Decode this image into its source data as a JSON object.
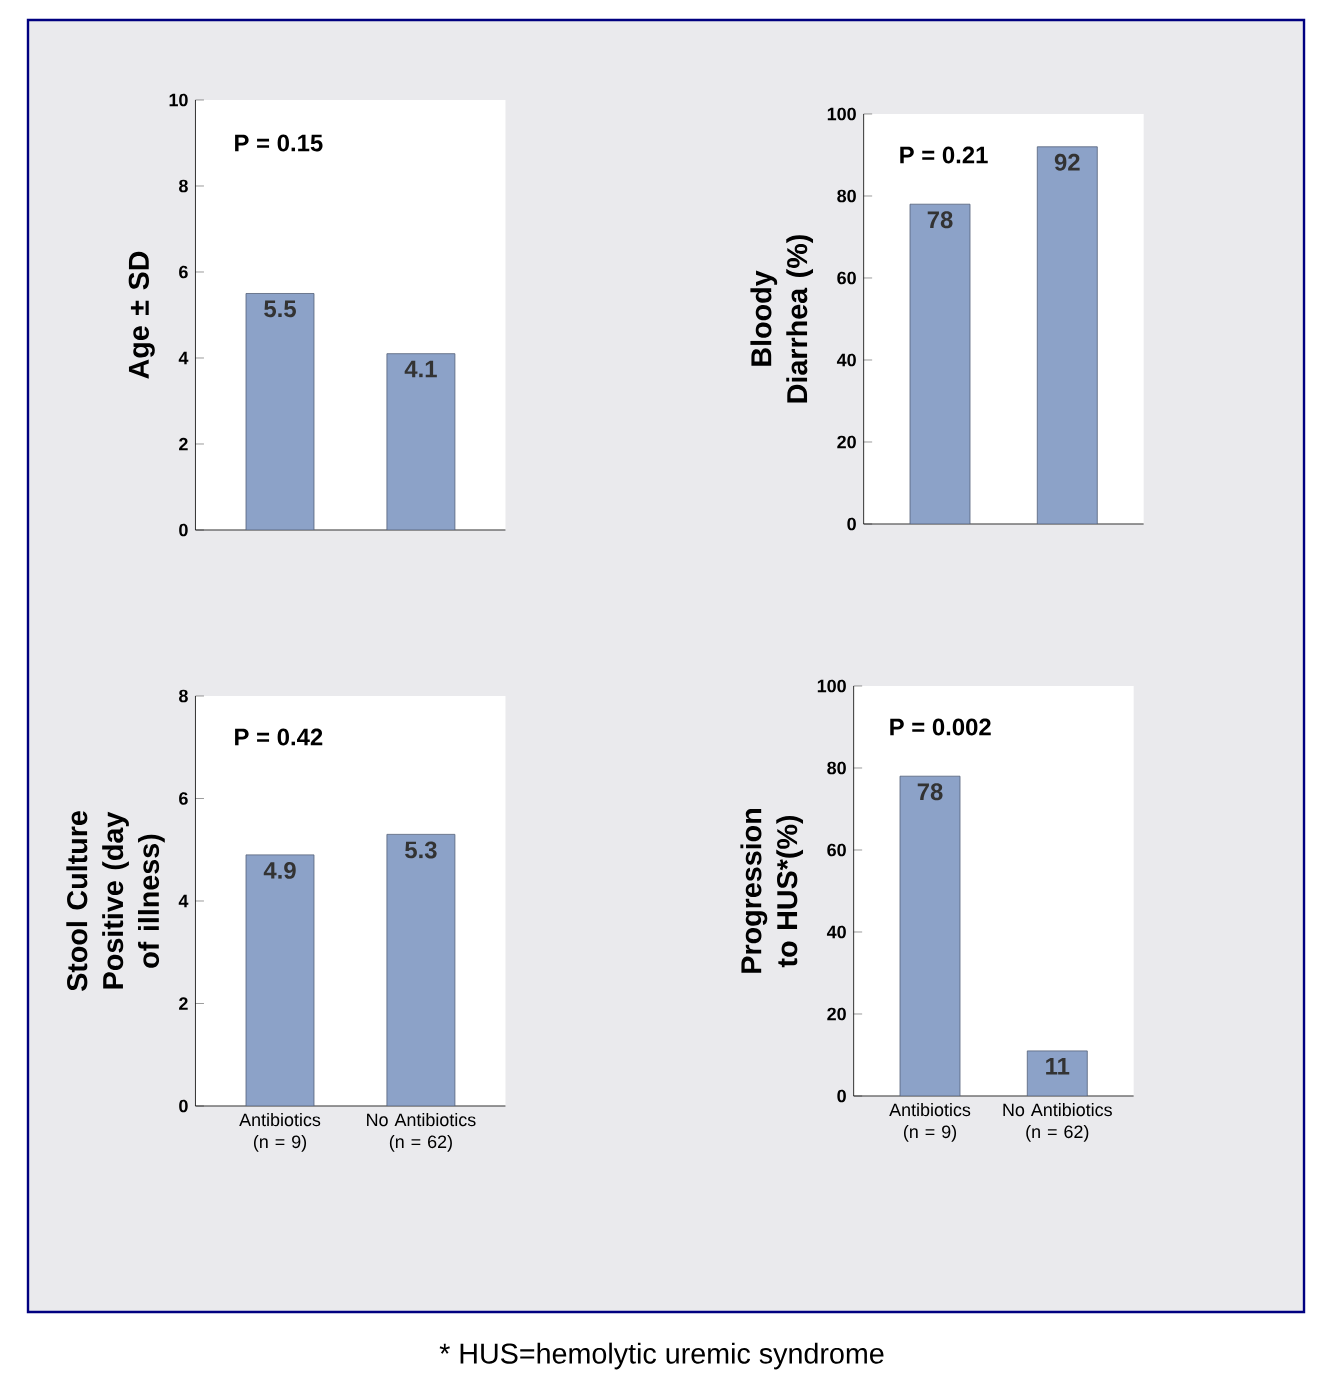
{
  "chart_data": [
    {
      "type": "bar",
      "ylabel": "Age ± SD",
      "categories": [
        null,
        null
      ],
      "values": [
        5.5,
        4.1
      ],
      "color": "#8ca2c8",
      "ylim": [
        0,
        10
      ],
      "yticks": [
        0,
        2,
        4,
        6,
        8,
        10
      ],
      "data_labels": true,
      "annotations": [
        "P = 0.15"
      ]
    },
    {
      "type": "bar",
      "ylabel": "Bloody Diarrhea (%)",
      "categories": [
        null,
        null
      ],
      "values": [
        78,
        92
      ],
      "color": "#8ca2c8",
      "ylim": [
        0,
        100
      ],
      "yticks": [
        0,
        20,
        40,
        60,
        80,
        100
      ],
      "data_labels": true,
      "annotations": [
        "P = 0.21"
      ]
    },
    {
      "type": "bar",
      "ylabel": "Stool Culture Positive (day of illness)",
      "categories": [
        "Antibiotics (n = 9)",
        "No Antibiotics (n = 62)"
      ],
      "values": [
        4.9,
        5.3
      ],
      "color": "#8ca2c8",
      "ylim": [
        0,
        8
      ],
      "yticks": [
        0,
        2,
        4,
        6,
        8
      ],
      "data_labels": true,
      "annotations": [
        "P = 0.42"
      ]
    },
    {
      "type": "bar",
      "ylabel": "Progression to HUS*(%)",
      "categories": [
        "Antibiotics (n = 9)",
        "No Antibiotics (n = 62)"
      ],
      "values": [
        78,
        11
      ],
      "color": "#8ca2c8",
      "ylim": [
        0,
        100
      ],
      "yticks": [
        0,
        20,
        40,
        60,
        80,
        100
      ],
      "data_labels": true,
      "annotations": [
        "P = 0.002",
        "* HUS=hemolytic uremic syndrome"
      ]
    }
  ]
}
